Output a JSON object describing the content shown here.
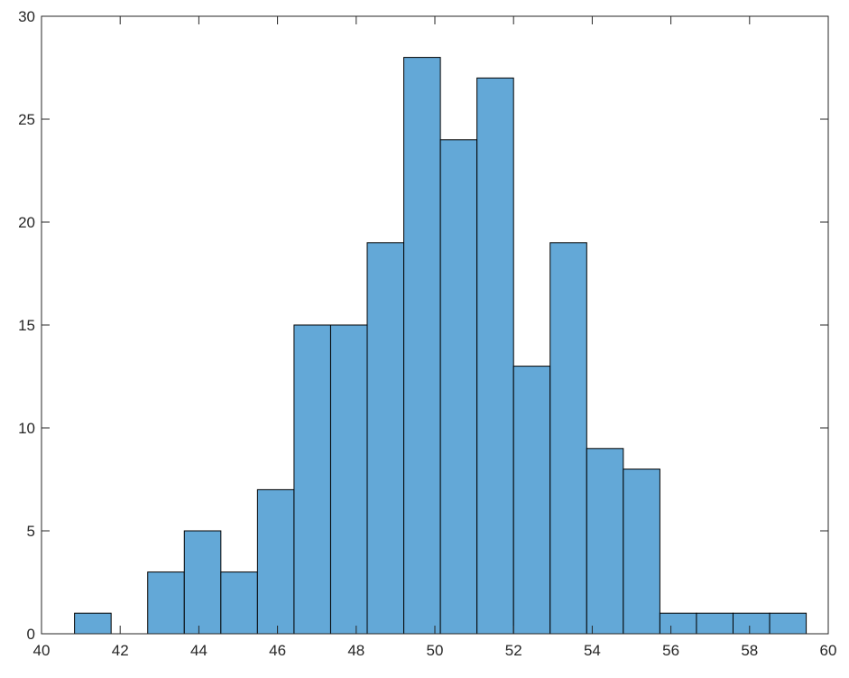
{
  "chart_data": {
    "type": "bar",
    "subtype": "histogram",
    "bar_color": "#63a8d7",
    "edge_color": "#000000",
    "bins": [
      {
        "x0": 40.84,
        "x1": 41.77,
        "count": 1
      },
      {
        "x0": 41.77,
        "x1": 42.7,
        "count": 0
      },
      {
        "x0": 42.7,
        "x1": 43.63,
        "count": 3
      },
      {
        "x0": 43.63,
        "x1": 44.56,
        "count": 5
      },
      {
        "x0": 44.56,
        "x1": 45.49,
        "count": 3
      },
      {
        "x0": 45.49,
        "x1": 46.42,
        "count": 7
      },
      {
        "x0": 46.42,
        "x1": 47.35,
        "count": 15
      },
      {
        "x0": 47.35,
        "x1": 48.28,
        "count": 15
      },
      {
        "x0": 48.28,
        "x1": 49.21,
        "count": 19
      },
      {
        "x0": 49.21,
        "x1": 50.14,
        "count": 28
      },
      {
        "x0": 50.14,
        "x1": 51.07,
        "count": 24
      },
      {
        "x0": 51.07,
        "x1": 52.0,
        "count": 27
      },
      {
        "x0": 52.0,
        "x1": 52.93,
        "count": 13
      },
      {
        "x0": 52.93,
        "x1": 53.86,
        "count": 19
      },
      {
        "x0": 53.86,
        "x1": 54.79,
        "count": 9
      },
      {
        "x0": 54.79,
        "x1": 55.72,
        "count": 8
      },
      {
        "x0": 55.72,
        "x1": 56.65,
        "count": 1
      },
      {
        "x0": 56.65,
        "x1": 57.58,
        "count": 1
      },
      {
        "x0": 57.58,
        "x1": 58.51,
        "count": 1
      },
      {
        "x0": 58.51,
        "x1": 59.44,
        "count": 1
      }
    ],
    "xlim": [
      40,
      60
    ],
    "ylim": [
      0,
      30
    ],
    "xticks": [
      "40",
      "42",
      "44",
      "46",
      "48",
      "50",
      "52",
      "54",
      "56",
      "58",
      "60"
    ],
    "yticks": [
      "0",
      "5",
      "10",
      "15",
      "20",
      "25",
      "30"
    ],
    "grid": false,
    "title": "",
    "xlabel": "",
    "ylabel": ""
  }
}
